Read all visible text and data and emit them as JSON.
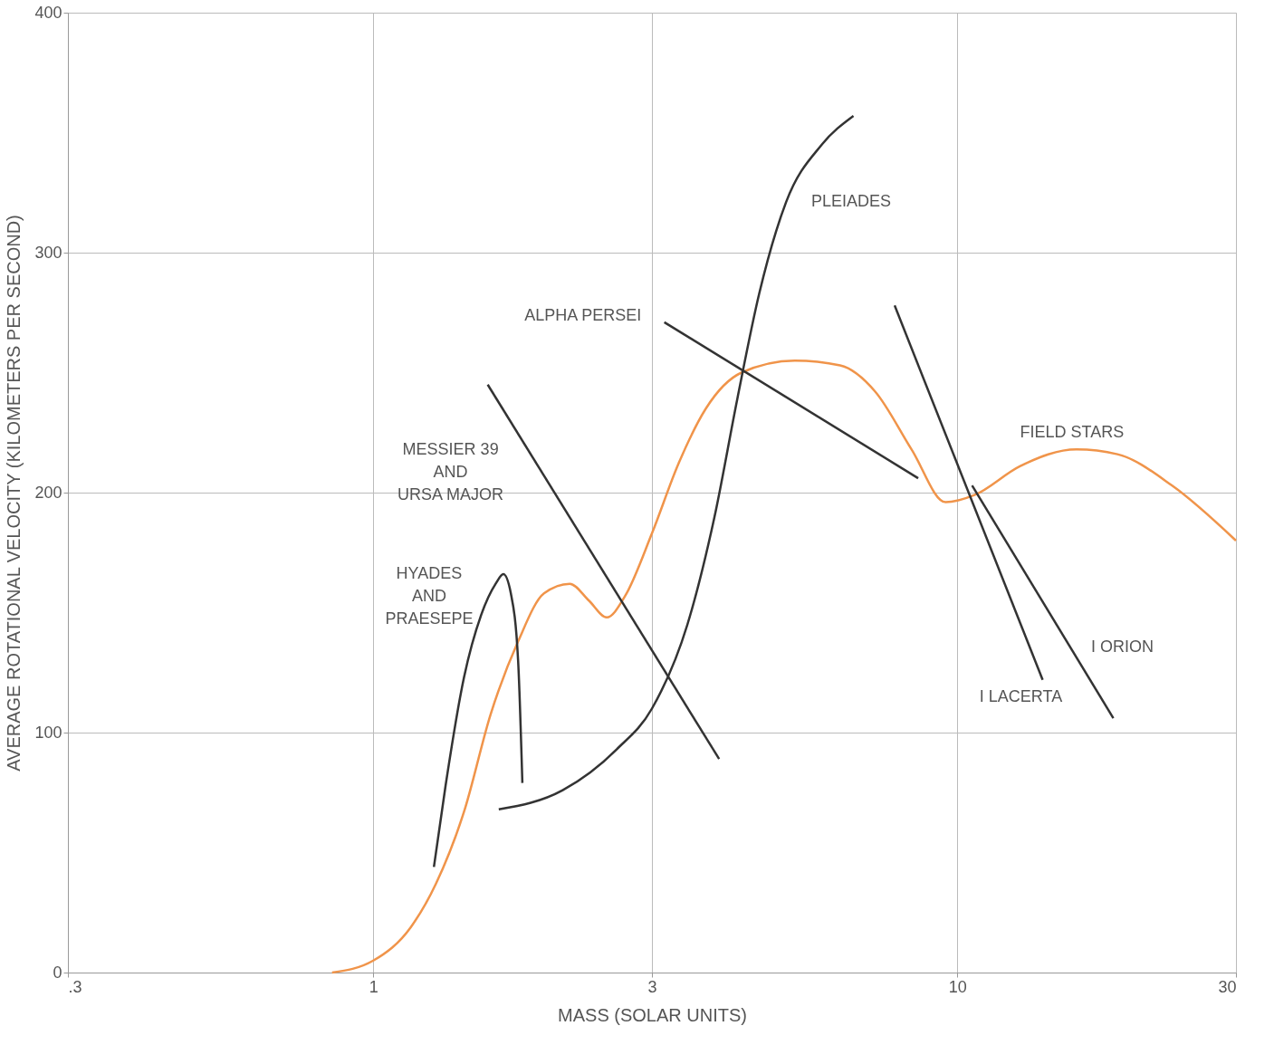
{
  "chart_data": {
    "type": "line",
    "xlabel": "MASS (SOLAR UNITS)",
    "ylabel": "AVERAGE ROTATIONAL VELOCITY (KILOMETERS PER SECOND)",
    "log": "x",
    "xlim": [
      0.3,
      30
    ],
    "xticks": [
      {
        "value": 0.3,
        "label": ".3"
      },
      1,
      3,
      10,
      30
    ],
    "ylim": [
      0,
      400
    ],
    "yticks": [
      0,
      100,
      200,
      300,
      400
    ],
    "grid": true,
    "legend": false,
    "marker": "none",
    "line_style": "solid",
    "series": [
      {
        "name": "FIELD STARS",
        "color": "#f0944a",
        "x": [
          0.85,
          1.0,
          1.16,
          1.28,
          1.43,
          1.59,
          1.77,
          1.96,
          2.17,
          2.34,
          2.51,
          2.7,
          3.0,
          3.33,
          3.71,
          4.27,
          5.27,
          6.3,
          7.24,
          8.35,
          9.55,
          10.7,
          12.8,
          16.0,
          18.8,
          23.3,
          30
        ],
        "values": [
          0,
          5,
          19,
          37,
          67,
          108,
          138,
          158,
          162,
          155,
          148,
          157,
          183,
          212,
          235,
          250,
          255,
          253,
          242,
          218,
          196,
          199,
          211,
          218,
          216,
          203,
          180
        ]
      },
      {
        "name": "HYADES\nAND\nPRAESEPE",
        "color": "#333333",
        "x": [
          1.27,
          1.33,
          1.43,
          1.53,
          1.62,
          1.67,
          1.72,
          1.77,
          1.8
        ],
        "values": [
          44,
          78,
          123,
          149,
          162,
          166,
          158,
          130,
          79
        ]
      },
      {
        "name": "PLEIADES",
        "color": "#333333",
        "x": [
          1.64,
          2.11,
          2.61,
          3.0,
          3.45,
          3.84,
          4.2,
          4.58,
          5.09,
          5.86,
          6.64
        ],
        "values": [
          68,
          76,
          93,
          110,
          145,
          190,
          239,
          283,
          321,
          345,
          357
        ]
      },
      {
        "name": "MESSIER 39\nAND\nURSA MAJOR",
        "color": "#333333",
        "x": [
          1.57,
          3.91
        ],
        "values": [
          245,
          89
        ]
      },
      {
        "name": "ALPHA PERSEI",
        "color": "#333333",
        "x": [
          3.15,
          8.57
        ],
        "values": [
          271,
          206
        ]
      },
      {
        "name": "I LACERTA",
        "color": "#333333",
        "x": [
          7.81,
          14.0
        ],
        "values": [
          278,
          122
        ]
      },
      {
        "name": "I ORION",
        "color": "#333333",
        "x": [
          10.6,
          18.5
        ],
        "values": [
          203,
          106
        ]
      }
    ]
  }
}
